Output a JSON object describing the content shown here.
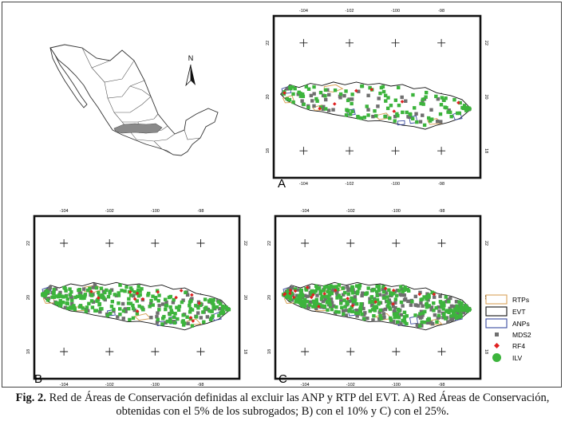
{
  "figure": {
    "inset_map": {
      "north_label": "N"
    },
    "panels": [
      {
        "id": "A",
        "label": "A",
        "lon_ticks": [
          "-104",
          "-102",
          "-100",
          "-98"
        ],
        "lat_ticks": [
          "22",
          "20",
          "18"
        ],
        "density": {
          "ilv": 110,
          "mds2": 50,
          "rf4": 8
        }
      },
      {
        "id": "B",
        "label": "B",
        "lon_ticks": [
          "-104",
          "-102",
          "-100",
          "-98"
        ],
        "lat_ticks": [
          "22",
          "20",
          "18"
        ],
        "density": {
          "ilv": 230,
          "mds2": 90,
          "rf4": 14
        }
      },
      {
        "id": "C",
        "label": "C",
        "lon_ticks": [
          "-104",
          "-102",
          "-100",
          "-98"
        ],
        "lat_ticks": [
          "22",
          "20",
          "18"
        ],
        "density": {
          "ilv": 300,
          "mds2": 260,
          "rf4": 20
        }
      }
    ],
    "legend": [
      {
        "key": "rtps",
        "label": "RTPs",
        "symbol": "box",
        "color": "#d9a35a"
      },
      {
        "key": "evt",
        "label": "EVT",
        "symbol": "box",
        "color": "#111111"
      },
      {
        "key": "anps",
        "label": "ANPs",
        "symbol": "box",
        "color": "#3a4aa0"
      },
      {
        "key": "mds2",
        "label": "MDS2",
        "symbol": "square",
        "color": "#6f6f6f"
      },
      {
        "key": "rf4",
        "label": "RF4",
        "symbol": "diamond",
        "color": "#e02020"
      },
      {
        "key": "ilv",
        "label": "ILV",
        "symbol": "circle",
        "color": "#3cb43c"
      }
    ]
  },
  "caption": {
    "label": "Fig. 2.",
    "text": "Red de Áreas de Conservación definidas al excluir las ANP y RTP del EVT. A) Red Áreas de Conservación, obtenidas con el 5% de los subrogados; B) con el 10% y C) con el 25%."
  }
}
